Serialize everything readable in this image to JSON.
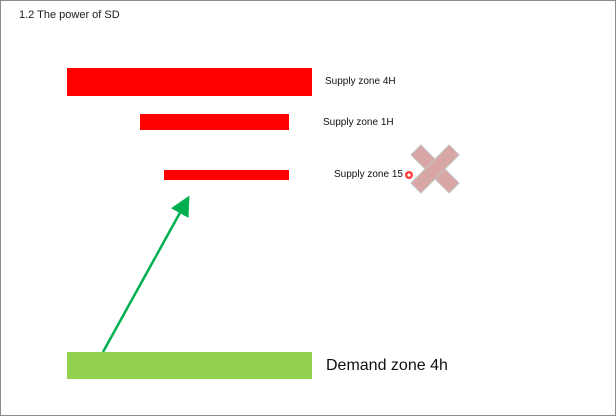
{
  "slide": {
    "title": "1.2 The power of SD"
  },
  "zones": {
    "supply_4h": {
      "label": "Supply zone 4H",
      "color": "#ff0000"
    },
    "supply_1h": {
      "label": "Supply zone 1H",
      "color": "#ff0000"
    },
    "supply_15": {
      "label": "Supply zone 15",
      "color": "#ff0000"
    },
    "demand_4h": {
      "label": "Demand zone 4h",
      "color": "#92d050"
    }
  },
  "arrow": {
    "color": "#00b050"
  },
  "icons": {
    "cross": "cross-icon",
    "comment_dot": "comment-dot-icon"
  }
}
